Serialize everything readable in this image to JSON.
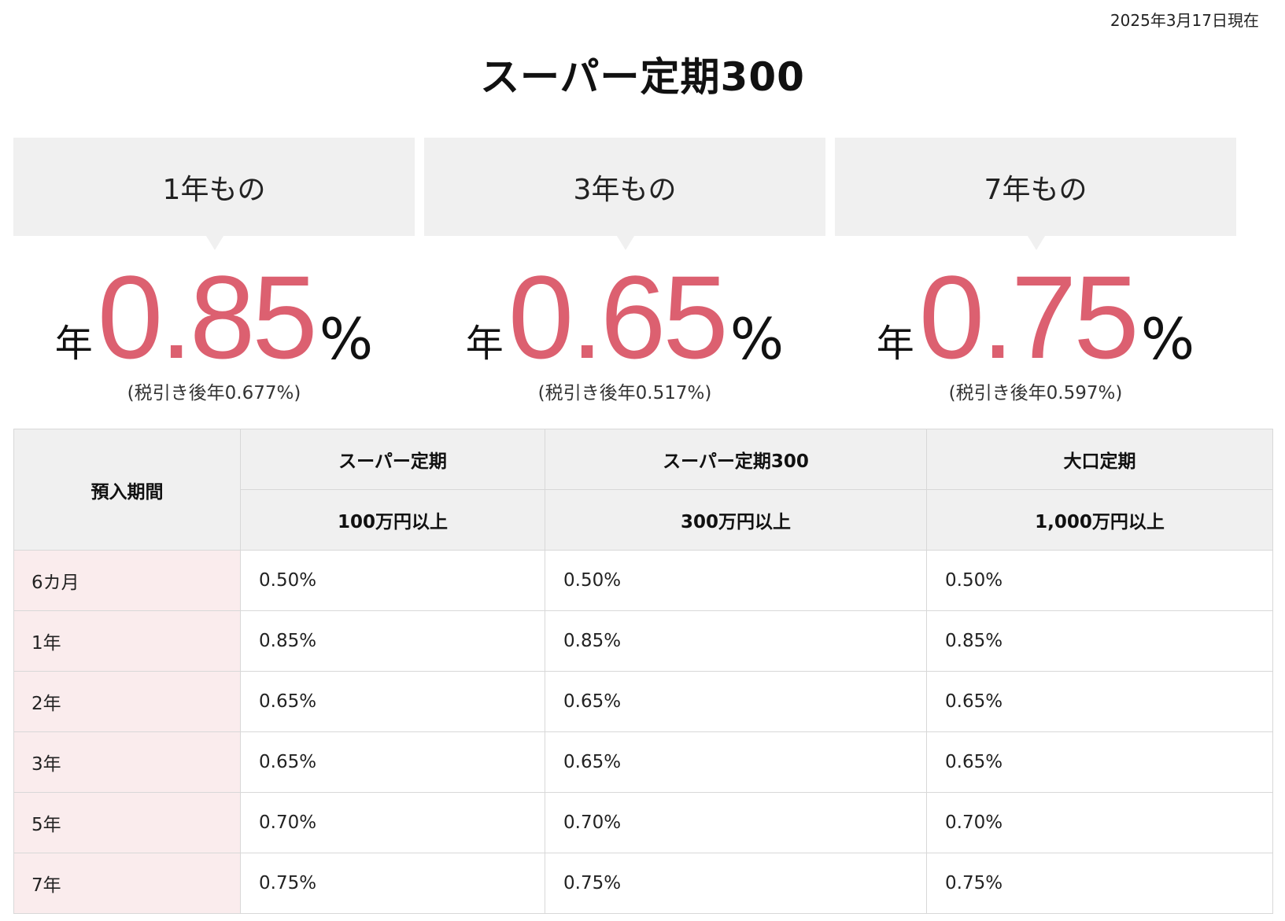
{
  "as_of": "2025年3月17日現在",
  "title": "スーパー定期300",
  "cards": [
    {
      "term": "1年もの",
      "prefix": "年",
      "rate": "0.85",
      "suffix": "%",
      "after_tax": "(税引き後年0.677%)"
    },
    {
      "term": "3年もの",
      "prefix": "年",
      "rate": "0.65",
      "suffix": "%",
      "after_tax": "(税引き後年0.517%)"
    },
    {
      "term": "7年もの",
      "prefix": "年",
      "rate": "0.75",
      "suffix": "%",
      "after_tax": "(税引き後年0.597%)"
    }
  ],
  "table": {
    "period_header": "預入期間",
    "products": [
      {
        "name": "スーパー定期",
        "minimum": "100万円以上"
      },
      {
        "name": "スーパー定期300",
        "minimum": "300万円以上"
      },
      {
        "name": "大口定期",
        "minimum": "1,000万円以上"
      }
    ],
    "rows": [
      {
        "period": "6カ月",
        "rates": [
          "0.50%",
          "0.50%",
          "0.50%"
        ]
      },
      {
        "period": "1年",
        "rates": [
          "0.85%",
          "0.85%",
          "0.85%"
        ]
      },
      {
        "period": "2年",
        "rates": [
          "0.65%",
          "0.65%",
          "0.65%"
        ]
      },
      {
        "period": "3年",
        "rates": [
          "0.65%",
          "0.65%",
          "0.65%"
        ]
      },
      {
        "period": "5年",
        "rates": [
          "0.70%",
          "0.70%",
          "0.70%"
        ]
      },
      {
        "period": "7年",
        "rates": [
          "0.75%",
          "0.75%",
          "0.75%"
        ]
      }
    ]
  },
  "colors": {
    "rate_accent": "#dc6070",
    "header_bg": "#f0f0f0",
    "period_bg": "#faeced",
    "border": "#d8d8d8"
  }
}
